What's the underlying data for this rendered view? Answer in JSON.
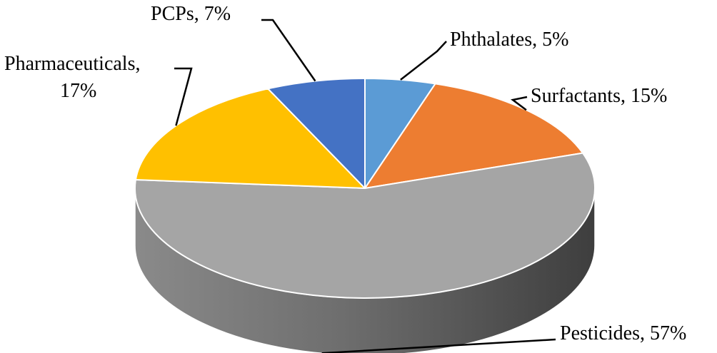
{
  "chart_data": {
    "type": "pie",
    "title": "",
    "categories": [
      "Phthalates",
      "Surfactants",
      "Pesticides",
      "Pharmaceuticals",
      "PCPs"
    ],
    "values": [
      5,
      15,
      57,
      17,
      7
    ],
    "unit": "%",
    "labels": [
      {
        "name": "Phthalates",
        "text": "Phthalates, 5%"
      },
      {
        "name": "Surfactants",
        "text": "Surfactants, 15%"
      },
      {
        "name": "Pesticides",
        "text": "Pesticides, 57%"
      },
      {
        "name": "Pharmaceuticals",
        "text_lines": [
          "Pharmaceuticals,",
          "17%"
        ]
      },
      {
        "name": "PCPs",
        "text": "PCPs, 7%"
      }
    ],
    "colors": {
      "Phthalates": "#5B9BD5",
      "Surfactants": "#ED7D31",
      "Pesticides": "#A5A5A5",
      "Pharmaceuticals": "#FFC000",
      "PCPs": "#4472C4"
    },
    "style": "3d-pie",
    "legend": "none"
  }
}
